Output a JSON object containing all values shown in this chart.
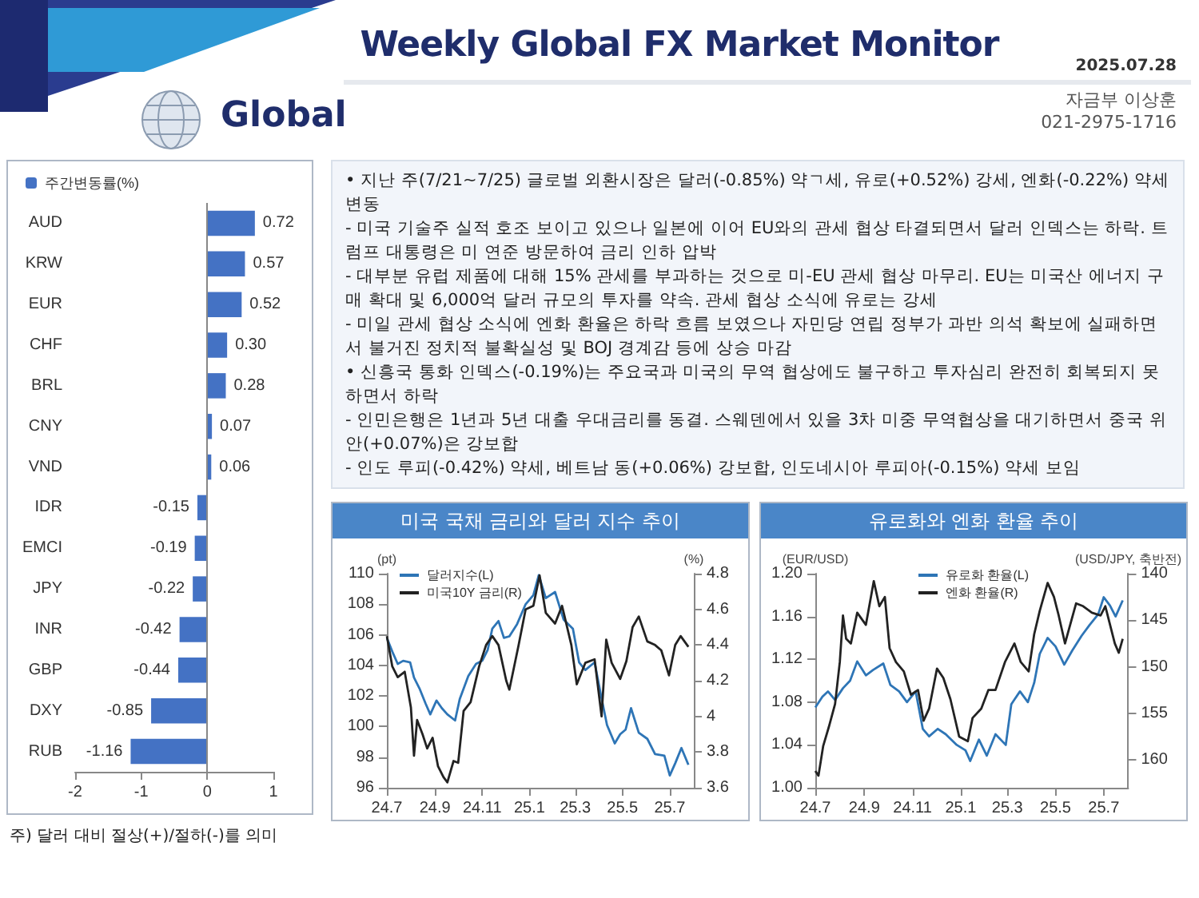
{
  "chart_data": [
    {
      "type": "other",
      "title": "Weekly Global FX Market Monitor",
      "subtitle": "2025.07.28",
      "annotations": [
        "Global",
        "자금부 이상훈",
        "021-2975-1716"
      ]
    },
    {
      "type": "bar",
      "orientation": "horizontal",
      "categories": [
        "AUD",
        "KRW",
        "EUR",
        "CHF",
        "BRL",
        "CNY",
        "VND",
        "IDR",
        "EMCI",
        "JPY",
        "INR",
        "GBP",
        "DXY",
        "RUB"
      ],
      "series": [
        {
          "name": "주간변동률(%)",
          "color": "#4472c4",
          "values": [
            0.72,
            0.57,
            0.52,
            0.3,
            0.28,
            0.07,
            0.06,
            -0.15,
            -0.19,
            -0.22,
            -0.42,
            -0.44,
            -0.85,
            -1.16
          ],
          "value_labels": [
            "0.72",
            "0.57",
            "0.52",
            "0.30",
            "0.28",
            "0.07",
            "0.06",
            "-0.15",
            "-0.19",
            "-0.22",
            "-0.42",
            "-0.44",
            "-0.85",
            "-1.16"
          ]
        }
      ],
      "xlim": [
        -2,
        1
      ],
      "xticks": [
        -2,
        -1,
        0,
        1
      ],
      "grid": false,
      "legend": "top left",
      "ref_lines": [
        {
          "axis": "x",
          "value": 0,
          "color": "#888888"
        }
      ],
      "annotations": [
        "주) 달러 대비 절상(+)/절하(-)를 의미"
      ]
    },
    {
      "type": "other",
      "annotations": [
        "• 지난 주(7/21~7/25) 글로벌 외환시장은 달러(-0.85%) 약ㄱ세, 유로(+0.52%) 강세, 엔화(-0.22%) 약세 변동",
        "- 미국 기술주 실적 호조 보이고 있으나 일본에 이어 EU와의 관세 협상 타결되면서 달러 인덱스는 하락. 트럼프 대통령은 미 연준 방문하여 금리 인하 압박",
        "- 대부분 유럽 제품에 대해 15% 관세를 부과하는 것으로 미-EU 관세 협상 마무리. EU는 미국산 에너지 구매 확대 및 6,000억 달러 규모의 투자를 약속. 관세 협상 소식에 유로는 강세",
        "- 미일 관세 협상 소식에 엔화 환율은 하락 흐름 보였으나 자민당 연립 정부가 과반 의석 확보에 실패하면서 불거진 정치적 불확실성 및 BOJ 경계감 등에 상승 마감",
        "• 신흥국 통화 인덱스(-0.19%)는 주요국과 미국의 무역 협상에도 불구하고 투자심리 완전히 회복되지 못하면서 하락",
        "- 인민은행은 1년과 5년 대출 우대금리를 동결. 스웨덴에서 있을 3차 미중 무역협상을 대기하면서 중국 위안(+0.07%)은 강보합",
        "- 인도 루피(-0.42%) 약세, 베트남 동(+0.06%) 강보합, 인도네시아 루피아(-0.15%) 약세 보임"
      ]
    },
    {
      "type": "line",
      "title": "미국 국채 금리와 달러 지수 추이",
      "ylabel": "(pt)",
      "y2label": "(%)",
      "legend": "top left",
      "marker": "none",
      "grid": false,
      "xlim": [
        "2024-07-01",
        "2025-08-01"
      ],
      "xticks": [
        {
          "value": "2024-07-01",
          "label": "24.7"
        },
        {
          "value": "2024-09-01",
          "label": "24.9"
        },
        {
          "value": "2024-11-01",
          "label": "24.11"
        },
        {
          "value": "2025-01-01",
          "label": "25.1"
        },
        {
          "value": "2025-03-01",
          "label": "25.3"
        },
        {
          "value": "2025-05-01",
          "label": "25.5"
        },
        {
          "value": "2025-07-01",
          "label": "25.7"
        }
      ],
      "ylim": [
        96,
        110
      ],
      "yticks": [
        96,
        98,
        100,
        102,
        104,
        106,
        108,
        110
      ],
      "y2lim": [
        3.6,
        4.8
      ],
      "y2ticks": [
        3.6,
        3.8,
        4.0,
        4.2,
        4.4,
        4.6,
        4.8
      ],
      "series": [
        {
          "name": "달러지수(L)",
          "color": "#2e75b6",
          "x": [
            "2024-07-01",
            "2024-07-08",
            "2024-07-15",
            "2024-07-22",
            "2024-07-31",
            "2024-08-05",
            "2024-08-12",
            "2024-08-20",
            "2024-08-26",
            "2024-09-03",
            "2024-09-10",
            "2024-09-17",
            "2024-09-27",
            "2024-10-03",
            "2024-10-14",
            "2024-10-24",
            "2024-11-01",
            "2024-11-08",
            "2024-11-14",
            "2024-11-22",
            "2024-11-29",
            "2024-12-06",
            "2024-12-16",
            "2024-12-27",
            "2025-01-06",
            "2025-01-13",
            "2025-01-22",
            "2025-02-03",
            "2025-02-14",
            "2025-02-26",
            "2025-03-06",
            "2025-03-14",
            "2025-03-26",
            "2025-04-03",
            "2025-04-11",
            "2025-04-21",
            "2025-04-28",
            "2025-05-05",
            "2025-05-12",
            "2025-05-22",
            "2025-06-02",
            "2025-06-12",
            "2025-06-24",
            "2025-07-01",
            "2025-07-08",
            "2025-07-16",
            "2025-07-25"
          ],
          "values": [
            105.8,
            104.9,
            104.1,
            104.3,
            104.2,
            103.2,
            102.5,
            101.5,
            100.8,
            101.7,
            101.2,
            100.8,
            100.4,
            101.8,
            103.3,
            104.1,
            104.3,
            105,
            106.4,
            106.9,
            105.8,
            105.9,
            106.7,
            108,
            108.6,
            109.9,
            108.4,
            108.8,
            107,
            106.4,
            104.2,
            103.7,
            104.2,
            102.1,
            100.1,
            98.9,
            99.5,
            99.8,
            101.2,
            99.6,
            99.2,
            98.2,
            98.1,
            96.8,
            97.6,
            98.6,
            97.5
          ]
        },
        {
          "name": "미국10Y 금리(R)",
          "color": "#222222",
          "axis": "y2",
          "x": [
            "2024-07-01",
            "2024-07-08",
            "2024-07-15",
            "2024-07-24",
            "2024-08-01",
            "2024-08-05",
            "2024-08-09",
            "2024-08-16",
            "2024-08-22",
            "2024-08-29",
            "2024-09-05",
            "2024-09-12",
            "2024-09-17",
            "2024-09-25",
            "2024-10-01",
            "2024-10-08",
            "2024-10-17",
            "2024-10-28",
            "2024-11-06",
            "2024-11-14",
            "2024-11-22",
            "2024-12-02",
            "2024-12-06",
            "2024-12-18",
            "2024-12-27",
            "2025-01-06",
            "2025-01-14",
            "2025-01-22",
            "2025-02-03",
            "2025-02-12",
            "2025-02-24",
            "2025-03-03",
            "2025-03-14",
            "2025-03-26",
            "2025-04-04",
            "2025-04-10",
            "2025-04-17",
            "2025-04-28",
            "2025-05-06",
            "2025-05-14",
            "2025-05-22",
            "2025-06-02",
            "2025-06-12",
            "2025-06-20",
            "2025-06-30",
            "2025-07-08",
            "2025-07-15",
            "2025-07-25"
          ],
          "values": [
            4.45,
            4.28,
            4.22,
            4.25,
            4.05,
            3.78,
            3.98,
            3.9,
            3.82,
            3.88,
            3.72,
            3.66,
            3.63,
            3.75,
            3.74,
            4.03,
            4.08,
            4.28,
            4.4,
            4.45,
            4.4,
            4.2,
            4.15,
            4.4,
            4.6,
            4.62,
            4.79,
            4.58,
            4.52,
            4.62,
            4.4,
            4.18,
            4.3,
            4.32,
            4.0,
            4.43,
            4.3,
            4.21,
            4.31,
            4.5,
            4.56,
            4.42,
            4.4,
            4.37,
            4.23,
            4.4,
            4.45,
            4.39
          ]
        }
      ]
    },
    {
      "type": "line",
      "title": "유로화와 엔화 환율 추이",
      "ylabel": "(EUR/USD)",
      "y2label": "(USD/JPY, 축반전)",
      "legend": "top",
      "marker": "none",
      "grid": false,
      "xlim": [
        "2024-07-01",
        "2025-08-01"
      ],
      "xticks": [
        {
          "value": "2024-07-01",
          "label": "24.7"
        },
        {
          "value": "2024-09-01",
          "label": "24.9"
        },
        {
          "value": "2024-11-01",
          "label": "24.11"
        },
        {
          "value": "2025-01-01",
          "label": "25.1"
        },
        {
          "value": "2025-03-01",
          "label": "25.3"
        },
        {
          "value": "2025-05-01",
          "label": "25.5"
        },
        {
          "value": "2025-07-01",
          "label": "25.7"
        }
      ],
      "ylim": [
        1.0,
        1.2
      ],
      "yticks": [
        {
          "value": 1.0,
          "label": "1.00"
        },
        1.04,
        1.08,
        1.12,
        1.16,
        {
          "value": 1.2,
          "label": "1.20"
        }
      ],
      "y2lim": [
        163,
        140
      ],
      "y2ticks": [
        140,
        145,
        150,
        155,
        160
      ],
      "series": [
        {
          "name": "유로화 환율(L)",
          "color": "#2e75b6",
          "x": [
            "2024-07-01",
            "2024-07-10",
            "2024-07-17",
            "2024-07-26",
            "2024-08-05",
            "2024-08-14",
            "2024-08-23",
            "2024-09-03",
            "2024-09-12",
            "2024-09-25",
            "2024-10-04",
            "2024-10-15",
            "2024-10-25",
            "2024-11-05",
            "2024-11-14",
            "2024-11-22",
            "2024-12-03",
            "2024-12-13",
            "2024-12-27",
            "2025-01-07",
            "2025-01-13",
            "2025-01-24",
            "2025-02-03",
            "2025-02-14",
            "2025-02-27",
            "2025-03-06",
            "2025-03-17",
            "2025-03-27",
            "2025-04-04",
            "2025-04-11",
            "2025-04-21",
            "2025-05-01",
            "2025-05-12",
            "2025-05-22",
            "2025-06-03",
            "2025-06-13",
            "2025-06-24",
            "2025-07-01",
            "2025-07-09",
            "2025-07-16",
            "2025-07-25"
          ],
          "values": [
            1.075,
            1.085,
            1.09,
            1.082,
            1.093,
            1.1,
            1.118,
            1.105,
            1.11,
            1.116,
            1.096,
            1.09,
            1.08,
            1.09,
            1.055,
            1.048,
            1.055,
            1.05,
            1.04,
            1.035,
            1.025,
            1.045,
            1.03,
            1.05,
            1.04,
            1.078,
            1.09,
            1.08,
            1.098,
            1.125,
            1.14,
            1.132,
            1.115,
            1.128,
            1.142,
            1.152,
            1.162,
            1.178,
            1.17,
            1.16,
            1.175
          ]
        },
        {
          "name": "엔화 환율(R)",
          "color": "#222222",
          "axis": "y2",
          "x": [
            "2024-07-01",
            "2024-07-05",
            "2024-07-11",
            "2024-07-18",
            "2024-07-26",
            "2024-08-01",
            "2024-08-05",
            "2024-08-09",
            "2024-08-15",
            "2024-08-23",
            "2024-09-03",
            "2024-09-13",
            "2024-09-20",
            "2024-09-27",
            "2024-10-03",
            "2024-10-11",
            "2024-10-21",
            "2024-10-30",
            "2024-11-08",
            "2024-11-15",
            "2024-11-22",
            "2024-12-02",
            "2024-12-10",
            "2024-12-19",
            "2024-12-30",
            "2025-01-10",
            "2025-01-16",
            "2025-01-27",
            "2025-02-05",
            "2025-02-14",
            "2025-02-26",
            "2025-03-10",
            "2025-03-18",
            "2025-03-28",
            "2025-04-04",
            "2025-04-11",
            "2025-04-21",
            "2025-04-29",
            "2025-05-05",
            "2025-05-13",
            "2025-05-27",
            "2025-06-05",
            "2025-06-16",
            "2025-06-27",
            "2025-07-03",
            "2025-07-15",
            "2025-07-20",
            "2025-07-25"
          ],
          "values": [
            161.2,
            161.7,
            158.5,
            156.5,
            154,
            149.5,
            144.5,
            147,
            147.5,
            144.2,
            145.5,
            140.8,
            143.5,
            142.5,
            148,
            149.5,
            150.5,
            153,
            152.5,
            155.8,
            154.5,
            150.2,
            151.2,
            153.5,
            157.5,
            158,
            155.5,
            154.5,
            152.5,
            152.5,
            149.5,
            147.5,
            149.5,
            150.5,
            146.5,
            144,
            141,
            142.5,
            144.5,
            147.5,
            143.2,
            143.5,
            144.2,
            144.5,
            143.5,
            147.5,
            148.5,
            147
          ]
        }
      ]
    }
  ]
}
